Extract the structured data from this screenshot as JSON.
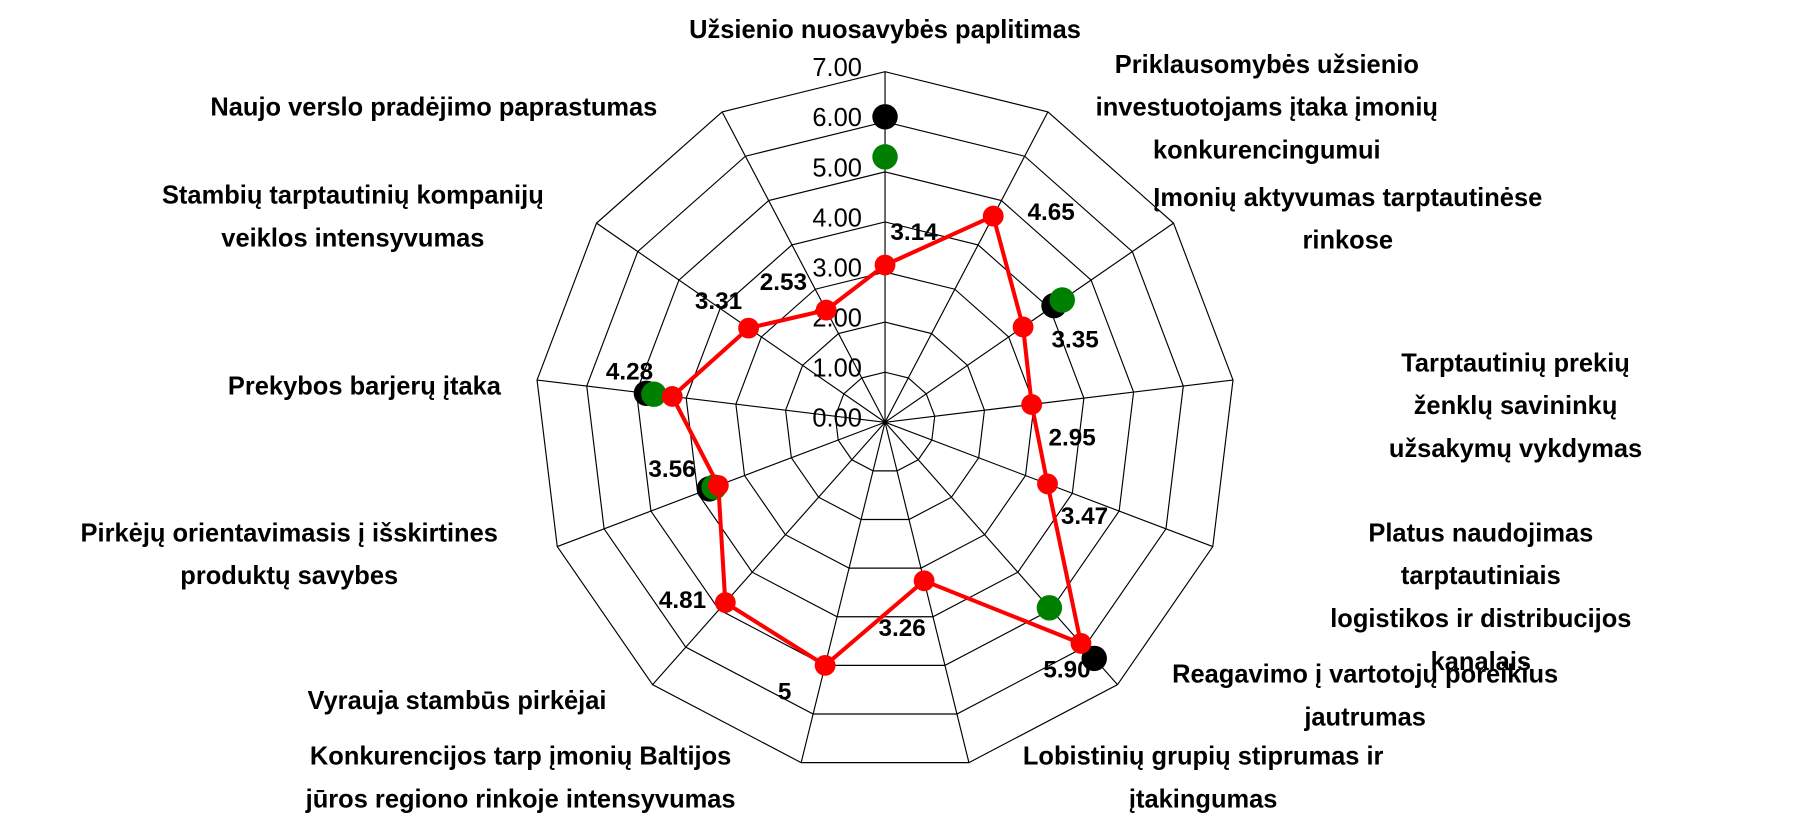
{
  "chart_data": {
    "type": "radar",
    "categories": [
      "Užsienio nuosavybės paplitimas",
      "Priklausomybės užsienio\ninvestuotojams įtaka įmonių\nkonkurencingumui",
      "Įmonių aktyvumas tarptautinėse\nrinkose",
      "Tarptautinių prekių ženklų savininkų\nužsakymų vykdymas",
      "Platus naudojimas tarptautiniais\nlogistikos ir distribucijos kanalais",
      "Reagavimo į vartotojų poreikius\njautrumas",
      "Lobistinių grupių stiprumas ir\nįtakingumas",
      "Konkurencijos tarp įmonių Baltijos\njūros regiono rinkoje intensyvumas",
      "Vyrauja stambūs pirkėjai",
      "Pirkėjų orientavimasis į išskirtines\nproduktų savybes",
      "Prekybos barjerų įtaka",
      "Stambių tarptautinių kompanijų\nveiklos intensyvumas",
      "Naujo verslo pradėjimo paprastumas"
    ],
    "ylim": [
      0,
      7
    ],
    "yticks": [
      {
        "value": 0,
        "label": "0.00"
      },
      {
        "value": 1,
        "label": "1.00"
      },
      {
        "value": 2,
        "label": "2.00"
      },
      {
        "value": 3,
        "label": "3.00"
      },
      {
        "value": 4,
        "label": "4.00"
      },
      {
        "value": 5,
        "label": "5.00"
      },
      {
        "value": 6,
        "label": "6.00"
      },
      {
        "value": 7,
        "label": "7.00"
      }
    ],
    "grid": true,
    "series": [
      {
        "color": "#000000",
        "line": false,
        "values": [
          6.1,
          null,
          4.1,
          null,
          null,
          6.3,
          null,
          null,
          null,
          3.75,
          4.8,
          null,
          null
        ]
      },
      {
        "color": "#008000",
        "line": false,
        "values": [
          5.3,
          null,
          4.3,
          null,
          null,
          4.95,
          null,
          null,
          null,
          3.65,
          4.65,
          null,
          null
        ]
      },
      {
        "color": "#ff0000",
        "line": true,
        "values": [
          3.14,
          4.65,
          3.35,
          2.95,
          3.47,
          5.9,
          3.26,
          5,
          4.81,
          3.56,
          4.28,
          3.31,
          2.53
        ],
        "value_labels": [
          "3.14",
          "4.65",
          "3.35",
          "2.95",
          "3.47",
          "5.90",
          "3.26",
          "5",
          "4.81",
          "3.56",
          "4.28",
          "3.31",
          "2.53"
        ]
      }
    ]
  }
}
